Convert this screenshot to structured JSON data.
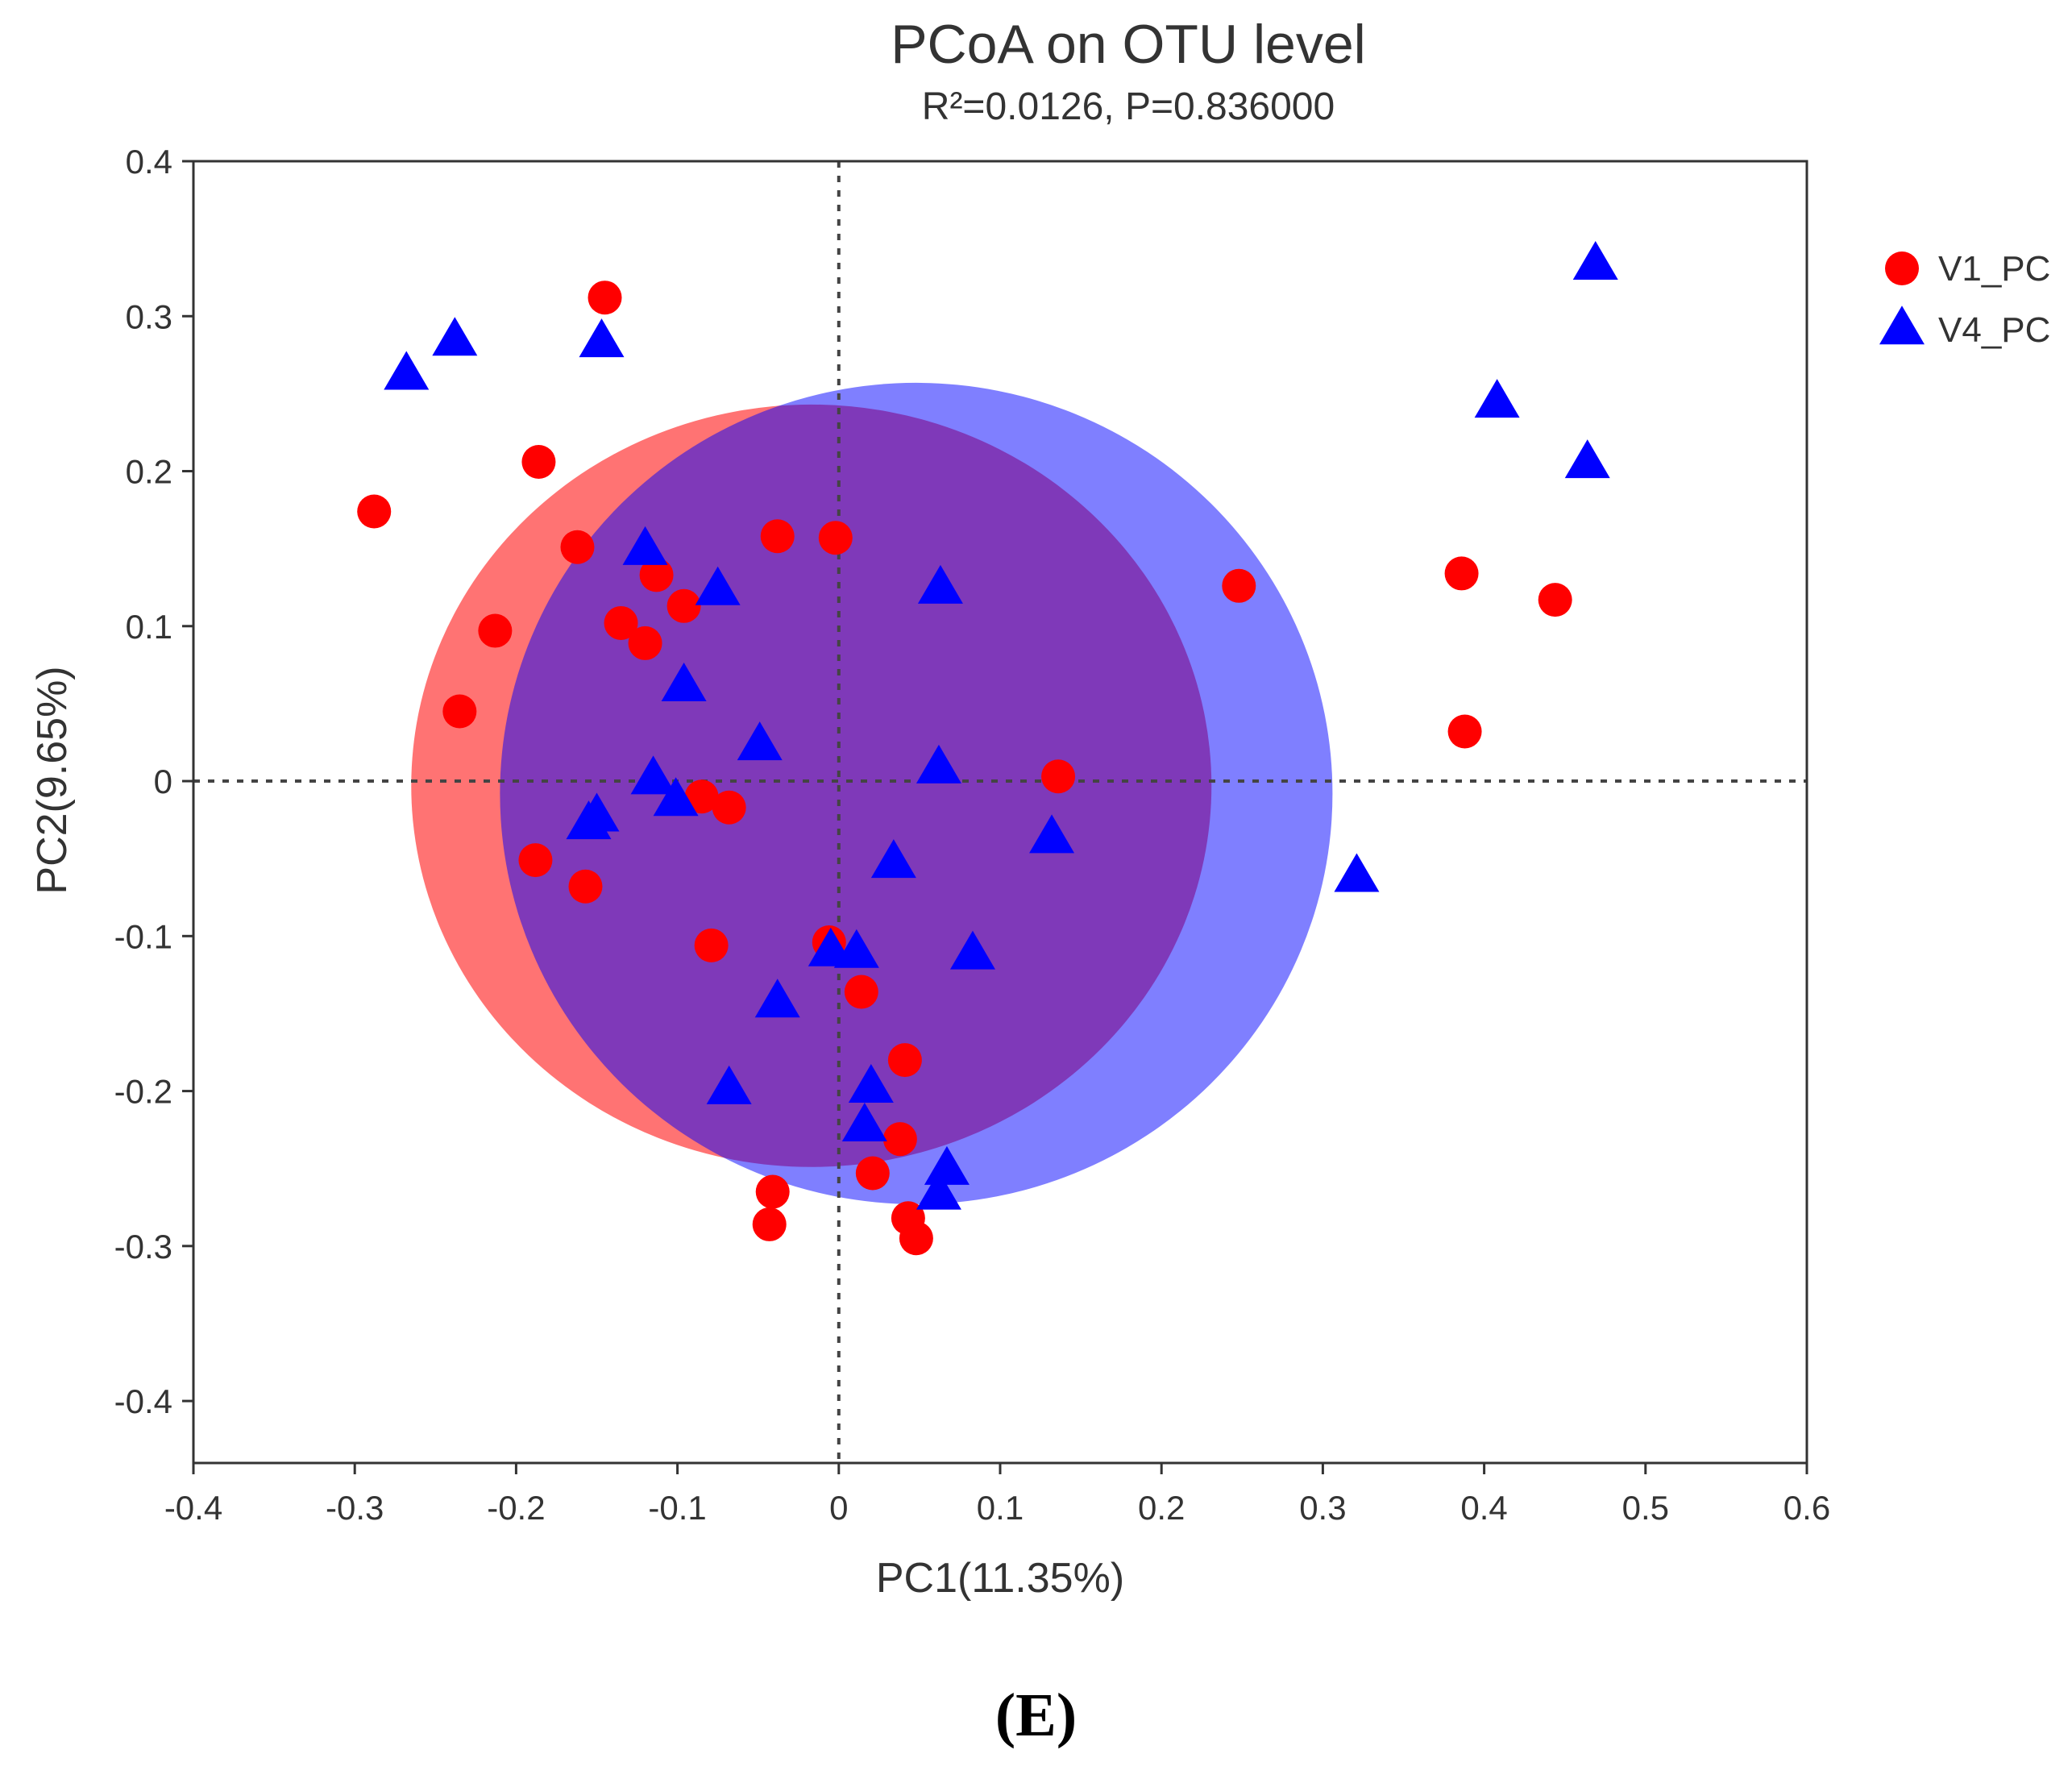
{
  "chart_data": {
    "type": "scatter",
    "title": "PCoA on OTU level",
    "subtitle": "R²=0.0126, P=0.836000",
    "xlabel": "PC1(11.35%)",
    "ylabel": "PC2(9.65%)",
    "xlim": [
      -0.4,
      0.6
    ],
    "ylim": [
      -0.44,
      0.4
    ],
    "xticks": [
      -0.4,
      -0.3,
      -0.2,
      -0.1,
      0,
      0.1,
      0.2,
      0.3,
      0.4,
      0.5,
      0.6
    ],
    "yticks": [
      -0.4,
      -0.3,
      -0.2,
      -0.1,
      0,
      0.1,
      0.2,
      0.3,
      0.4
    ],
    "xtick_labels": [
      "-0.4",
      "-0.3",
      "-0.2",
      "-0.1",
      "0",
      "0.1",
      "0.2",
      "0.3",
      "0.4",
      "0.5",
      "0.6"
    ],
    "ytick_labels": [
      "0.4",
      "0.3",
      "0.2",
      "0.1",
      "0",
      "-0.1",
      "-0.2",
      "-0.3",
      "-0.4"
    ],
    "reference_lines": {
      "x": 0,
      "y": 0,
      "style": "dotted"
    },
    "legend_position": "right",
    "series": [
      {
        "name": "V1_PC",
        "marker": "circle",
        "color": "#ff0000",
        "ellipse": {
          "cx": -0.017,
          "cy": -0.003,
          "rx": 0.248,
          "ry": 0.246,
          "color": "#ff0000",
          "opacity": 0.55
        },
        "points": [
          [
            -0.145,
            0.312
          ],
          [
            -0.186,
            0.206
          ],
          [
            -0.288,
            0.174
          ],
          [
            -0.162,
            0.151
          ],
          [
            -0.038,
            0.158
          ],
          [
            -0.002,
            0.157
          ],
          [
            -0.113,
            0.133
          ],
          [
            -0.096,
            0.113
          ],
          [
            -0.213,
            0.097
          ],
          [
            -0.135,
            0.102
          ],
          [
            -0.12,
            0.089
          ],
          [
            -0.235,
            0.045
          ],
          [
            0.136,
            0.003
          ],
          [
            -0.085,
            -0.01
          ],
          [
            -0.068,
            -0.017
          ],
          [
            -0.188,
            -0.051
          ],
          [
            -0.157,
            -0.068
          ],
          [
            -0.079,
            -0.106
          ],
          [
            -0.006,
            -0.104
          ],
          [
            0.014,
            -0.136
          ],
          [
            0.041,
            -0.18
          ],
          [
            0.038,
            -0.231
          ],
          [
            0.021,
            -0.253
          ],
          [
            -0.041,
            -0.265
          ],
          [
            -0.043,
            -0.286
          ],
          [
            0.043,
            -0.282
          ],
          [
            0.048,
            -0.295
          ],
          [
            0.248,
            0.126
          ],
          [
            0.386,
            0.134
          ],
          [
            0.444,
            0.117
          ],
          [
            0.388,
            0.032
          ]
        ]
      },
      {
        "name": "V4_PC",
        "marker": "triangle",
        "color": "#0000ff",
        "ellipse": {
          "cx": 0.048,
          "cy": -0.008,
          "rx": 0.258,
          "ry": 0.265,
          "color": "#0000ff",
          "opacity": 0.5
        },
        "points": [
          [
            -0.268,
            0.262
          ],
          [
            -0.238,
            0.284
          ],
          [
            -0.147,
            0.283
          ],
          [
            -0.12,
            0.149
          ],
          [
            -0.075,
            0.123
          ],
          [
            0.063,
            0.124
          ],
          [
            -0.096,
            0.061
          ],
          [
            -0.049,
            0.023
          ],
          [
            0.062,
            0.008
          ],
          [
            -0.115,
            0.001
          ],
          [
            -0.101,
            -0.013
          ],
          [
            -0.15,
            -0.023
          ],
          [
            -0.155,
            -0.028
          ],
          [
            0.132,
            -0.037
          ],
          [
            0.034,
            -0.053
          ],
          [
            0.321,
            -0.062
          ],
          [
            -0.005,
            -0.11
          ],
          [
            0.011,
            -0.111
          ],
          [
            0.083,
            -0.112
          ],
          [
            -0.038,
            -0.143
          ],
          [
            -0.068,
            -0.199
          ],
          [
            0.02,
            -0.198
          ],
          [
            0.016,
            -0.223
          ],
          [
            0.067,
            -0.251
          ],
          [
            0.062,
            -0.267
          ],
          [
            0.408,
            0.244
          ],
          [
            0.464,
            0.205
          ],
          [
            0.469,
            0.333
          ]
        ]
      }
    ]
  },
  "panel_label": "(E)"
}
